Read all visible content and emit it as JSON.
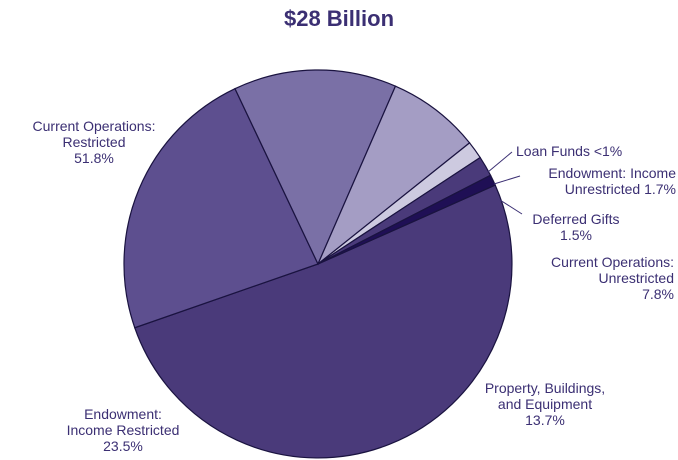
{
  "chart_data": {
    "type": "pie",
    "title": "$28 Billion",
    "slices": [
      {
        "key": "restricted",
        "lines": [
          "Current Operations:",
          "Restricted",
          "51.8%"
        ],
        "value": 51.8,
        "color": "#4a3a7a"
      },
      {
        "key": "endow_restricted",
        "lines": [
          "Endowment:",
          "Income Restricted",
          "23.5%"
        ],
        "value": 23.5,
        "color": "#5d4f8f"
      },
      {
        "key": "property",
        "lines": [
          "Property, Buildings,",
          "and Equipment",
          "13.7%"
        ],
        "value": 13.7,
        "color": "#7a70a6"
      },
      {
        "key": "unrestricted",
        "lines": [
          "Current Operations:",
          "Unrestricted",
          "7.8%"
        ],
        "value": 7.8,
        "color": "#a49dc4"
      },
      {
        "key": "deferred",
        "lines": [
          "Deferred Gifts",
          "1.5%"
        ],
        "value": 1.5,
        "color": "#cdcae0"
      },
      {
        "key": "endow_unrestricted",
        "lines": [
          "Endowment: Income",
          "Unrestricted 1.7%"
        ],
        "value": 1.7,
        "color": "#4a3a7a"
      },
      {
        "key": "loan",
        "lines": [
          "Loan Funds <1%"
        ],
        "value": 0.9,
        "color": "#1f0f55"
      }
    ]
  }
}
